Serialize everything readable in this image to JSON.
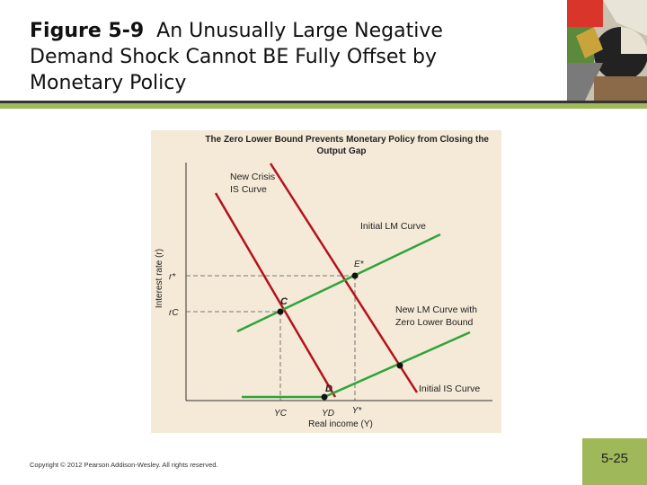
{
  "slide": {
    "title_bold": "Figure 5-9",
    "title_rest": "An Unusually Large Negative Demand Shock Cannot BE Fully Offset by Monetary Policy",
    "copyright": "Copyright © 2012 Pearson Addison-Wesley. All rights reserved.",
    "slide_number": "5-25"
  },
  "figure": {
    "heading_line1": "The Zero Lower Bound Prevents Monetary Policy from Closing the",
    "heading_line2": "Output Gap",
    "y_axis_label": "Interest rate (r)",
    "x_axis_label": "Real income (Y)",
    "y_ticks": {
      "r_star": "r*",
      "r_c": "rC"
    },
    "x_ticks": {
      "y_c": "YC",
      "y_d": "YD",
      "y_star": "Y*"
    },
    "points": {
      "e_star": "E*",
      "c": "C",
      "d": "D"
    },
    "curves": {
      "new_crisis_is_line1": "New Crisis",
      "new_crisis_is_line2": "IS Curve",
      "initial_lm": "Initial LM Curve",
      "new_lm_line1": "New LM Curve with",
      "new_lm_line2": "Zero Lower Bound",
      "initial_is": "Initial IS Curve"
    },
    "colors": {
      "is_curve": "#b5121b",
      "lm_curve": "#2ea43a",
      "panel_bg": "#f4ead7",
      "accent": "#9fb85a"
    }
  }
}
